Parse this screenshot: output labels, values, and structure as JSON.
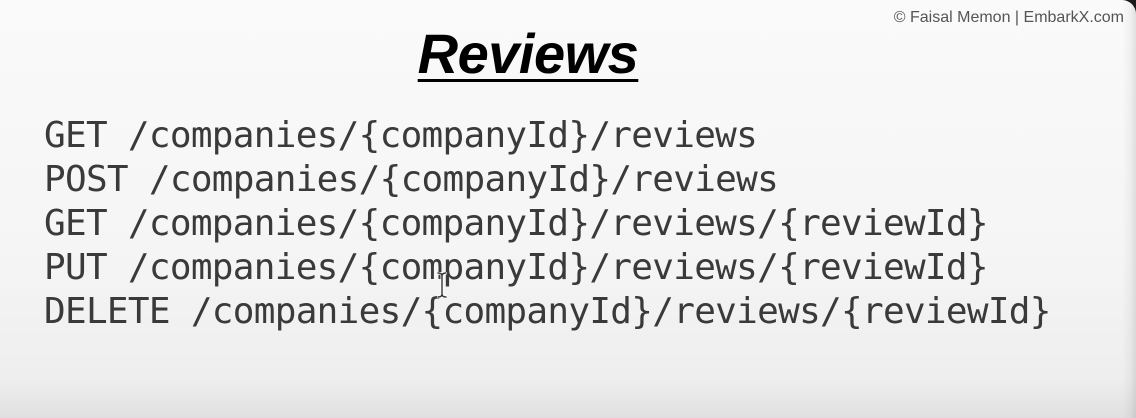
{
  "copyright": "© Faisal Memon | EmbarkX.com",
  "title": "Reviews",
  "endpoints": [
    {
      "method": "GET",
      "path": "/companies/{companyId}/reviews"
    },
    {
      "method": "POST",
      "path": "/companies/{companyId}/reviews"
    },
    {
      "method": "GET",
      "path": "/companies/{companyId}/reviews/{reviewId}"
    },
    {
      "method": "PUT",
      "path": "/companies/{companyId}/reviews/{reviewId}"
    },
    {
      "method": "DELETE",
      "path": "/companies/{companyId}/reviews/{reviewId}"
    }
  ],
  "cursor_icon": "text-cursor-icon",
  "colors": {
    "background": "#f7f7f7",
    "title": "#000000",
    "code_text": "#3a3a3a",
    "copyright": "#555555"
  }
}
